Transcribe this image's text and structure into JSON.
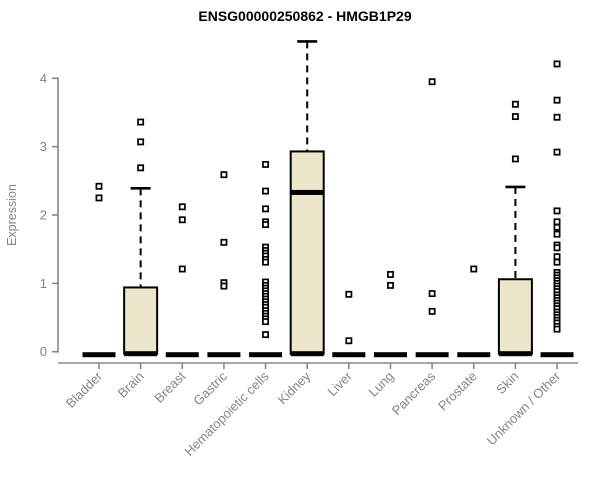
{
  "chart_data": {
    "type": "boxplot",
    "title": "ENSG00000250862 - HMGB1P29",
    "ylabel": "Expression",
    "xlabel": "",
    "ylim": [
      0,
      4
    ],
    "yticks": [
      0,
      1,
      2,
      3,
      4
    ],
    "grid": "off",
    "legend": "none",
    "colors": {
      "box_fill": "#ECE7CB",
      "box_border": "#000000",
      "axis_color": "#888888",
      "tick_label_color": "#858585",
      "title_color": "#000000",
      "outlier_color": "#000000"
    },
    "categories": [
      "Bladder",
      "Brain",
      "Breast",
      "Gastric",
      "Hematopoietic cells",
      "Kidney",
      "Liver",
      "Lung",
      "Pancreas",
      "Prostate",
      "Skin",
      "Unknown / Other"
    ],
    "series": [
      {
        "category": "Bladder",
        "q1": 0,
        "median": 0,
        "q3": 0,
        "whisker_low": 0,
        "whisker_high": 0,
        "outliers": [
          2.42,
          2.25
        ]
      },
      {
        "category": "Brain",
        "q1": 0,
        "median": 0,
        "q3": 0.94,
        "whisker_low": 0,
        "whisker_high": 2.39,
        "outliers": [
          3.36,
          3.07,
          2.69
        ]
      },
      {
        "category": "Breast",
        "q1": 0,
        "median": 0,
        "q3": 0,
        "whisker_low": 0,
        "whisker_high": 0,
        "outliers": [
          2.12,
          1.93,
          1.21
        ]
      },
      {
        "category": "Gastric",
        "q1": 0,
        "median": 0,
        "q3": 0,
        "whisker_low": 0,
        "whisker_high": 0,
        "outliers": [
          2.59,
          1.6,
          1.01,
          0.96
        ]
      },
      {
        "category": "Hematopoietic cells",
        "q1": 0,
        "median": 0,
        "q3": 0,
        "whisker_low": 0,
        "whisker_high": 0,
        "outliers": [
          2.74,
          2.35,
          2.09,
          1.9,
          1.86,
          1.53,
          1.48,
          1.44,
          1.4,
          1.35,
          1.31,
          1.02,
          0.97,
          0.93,
          0.89,
          0.85,
          0.81,
          0.77,
          0.73,
          0.69,
          0.65,
          0.6,
          0.56,
          0.52,
          0.48,
          0.44,
          0.25
        ]
      },
      {
        "category": "Kidney",
        "q1": 0,
        "median": 2.33,
        "q3": 2.93,
        "whisker_low": 0,
        "whisker_high": 4.54,
        "outliers": []
      },
      {
        "category": "Liver",
        "q1": 0,
        "median": 0,
        "q3": 0,
        "whisker_low": 0,
        "whisker_high": 0,
        "outliers": [
          0.84,
          0.16
        ]
      },
      {
        "category": "Lung",
        "q1": 0,
        "median": 0,
        "q3": 0,
        "whisker_low": 0,
        "whisker_high": 0,
        "outliers": [
          1.13,
          0.97
        ]
      },
      {
        "category": "Pancreas",
        "q1": 0,
        "median": 0,
        "q3": 0,
        "whisker_low": 0,
        "whisker_high": 0,
        "outliers": [
          3.95,
          0.85,
          0.59
        ]
      },
      {
        "category": "Prostate",
        "q1": 0,
        "median": 0,
        "q3": 0,
        "whisker_low": 0,
        "whisker_high": 0,
        "outliers": [
          1.21
        ]
      },
      {
        "category": "Skin",
        "q1": 0,
        "median": 0,
        "q3": 1.06,
        "whisker_low": 0,
        "whisker_high": 2.41,
        "outliers": [
          3.62,
          3.44,
          2.82
        ]
      },
      {
        "category": "Unknown / Other",
        "q1": 0,
        "median": 0,
        "q3": 0,
        "whisker_low": 0,
        "whisker_high": 0,
        "outliers": [
          4.21,
          3.68,
          3.43,
          2.92,
          2.06,
          1.9,
          1.82,
          1.72,
          1.56,
          1.52,
          1.39,
          1.31,
          1.16,
          1.12,
          1.08,
          1.04,
          1.0,
          0.96,
          0.92,
          0.88,
          0.83,
          0.79,
          0.75,
          0.71,
          0.67,
          0.63,
          0.58,
          0.54,
          0.5,
          0.46,
          0.42,
          0.37,
          0.33
        ]
      }
    ]
  }
}
